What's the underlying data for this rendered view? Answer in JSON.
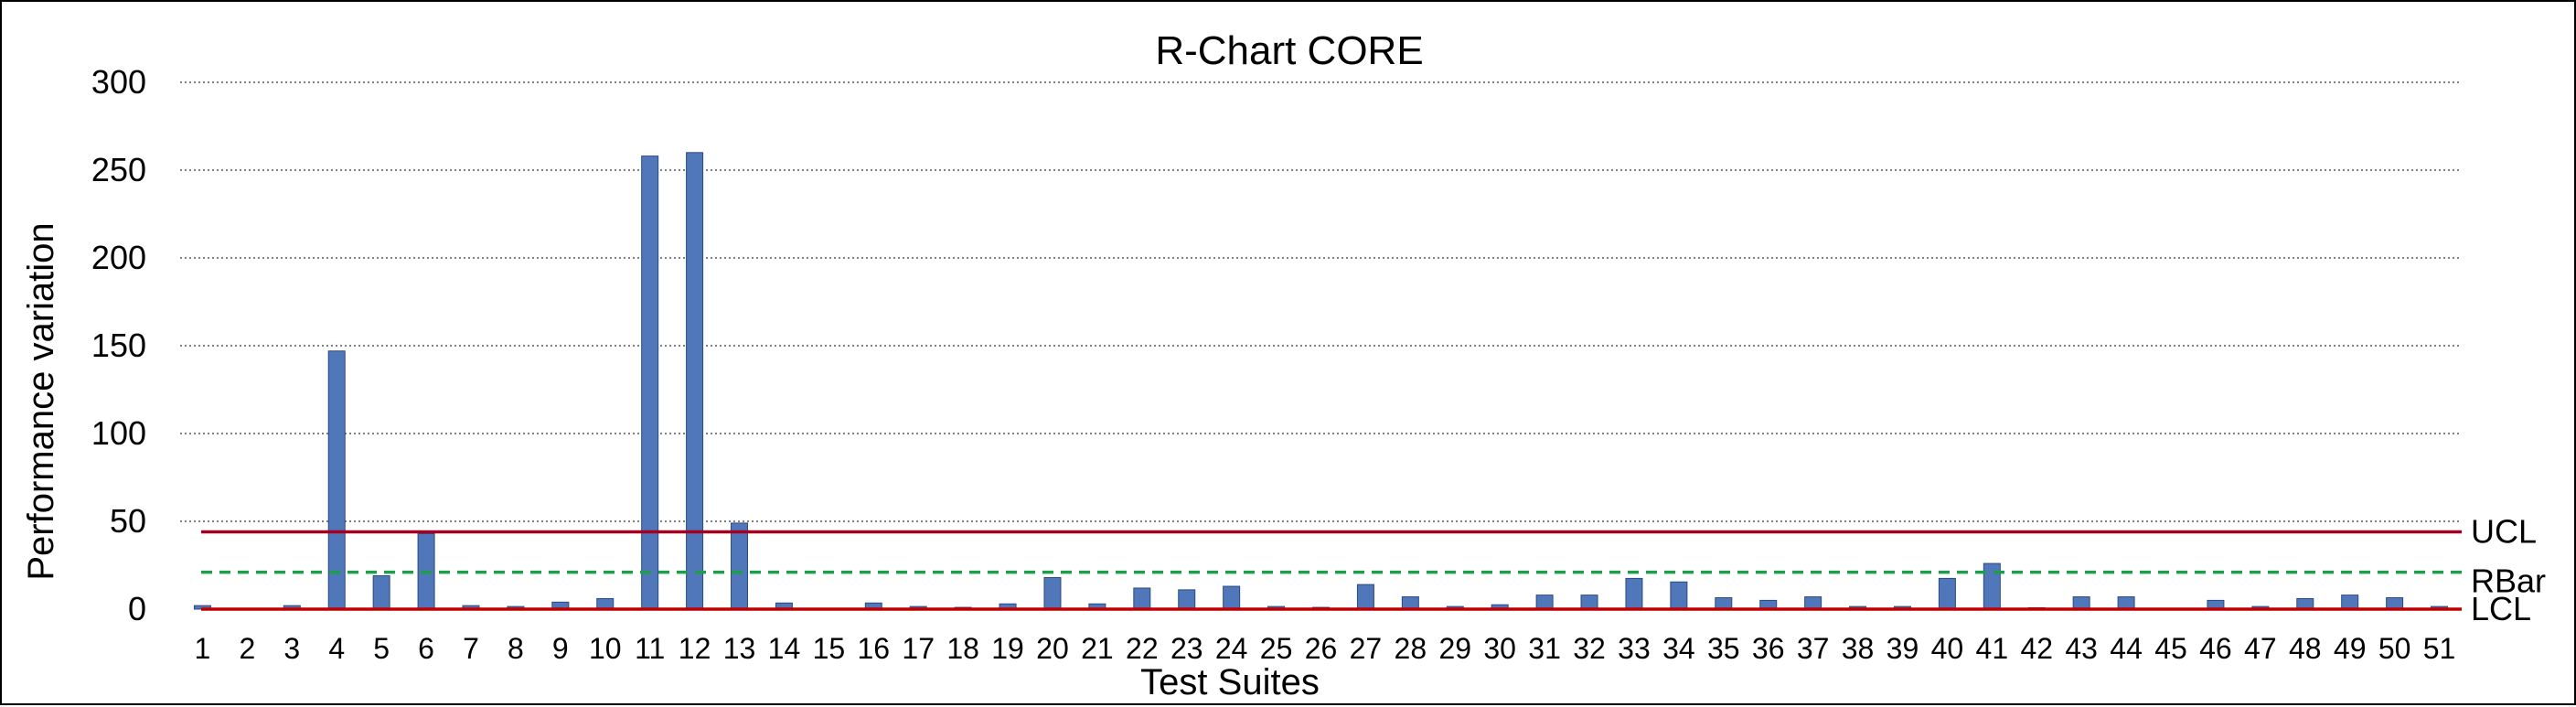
{
  "chart_data": {
    "type": "bar",
    "title": "R-Chart CORE",
    "xlabel": "Test Suites",
    "ylabel": "Performance variation",
    "ylim": [
      0,
      300
    ],
    "yticks": [
      "0",
      "50",
      "100",
      "150",
      "200",
      "250",
      "300"
    ],
    "grid": true,
    "categories": [
      "1",
      "2",
      "3",
      "4",
      "5",
      "6",
      "7",
      "8",
      "9",
      "10",
      "11",
      "12",
      "13",
      "14",
      "15",
      "16",
      "17",
      "18",
      "19",
      "20",
      "21",
      "22",
      "23",
      "24",
      "25",
      "26",
      "27",
      "28",
      "29",
      "30",
      "31",
      "32",
      "33",
      "34",
      "35",
      "36",
      "37",
      "38",
      "39",
      "40",
      "41",
      "42",
      "43",
      "44",
      "45",
      "46",
      "47",
      "48",
      "49",
      "50",
      "51"
    ],
    "values": [
      2,
      0.3,
      2,
      147,
      19,
      43,
      2,
      1.5,
      4,
      6,
      258,
      260,
      49,
      3.5,
      0.3,
      3.5,
      1.5,
      1,
      3,
      18,
      3,
      12,
      11,
      13,
      1.5,
      1,
      14,
      7,
      1.5,
      2.5,
      8,
      8,
      17.5,
      15.5,
      6.5,
      5,
      7,
      1.5,
      1.5,
      17.5,
      26,
      0.8,
      7,
      7,
      0.3,
      5,
      1.5,
      6,
      8,
      6.5,
      1.5
    ],
    "bar_color": "#4f77b9",
    "control_lines": [
      {
        "name": "UCL",
        "value": 44,
        "color": "#a50021",
        "style": "solid"
      },
      {
        "name": "RBar",
        "value": 21,
        "color": "#1e9e4a",
        "style": "dashed"
      },
      {
        "name": "LCL",
        "value": 0,
        "color": "#c00000",
        "style": "solid"
      }
    ]
  }
}
